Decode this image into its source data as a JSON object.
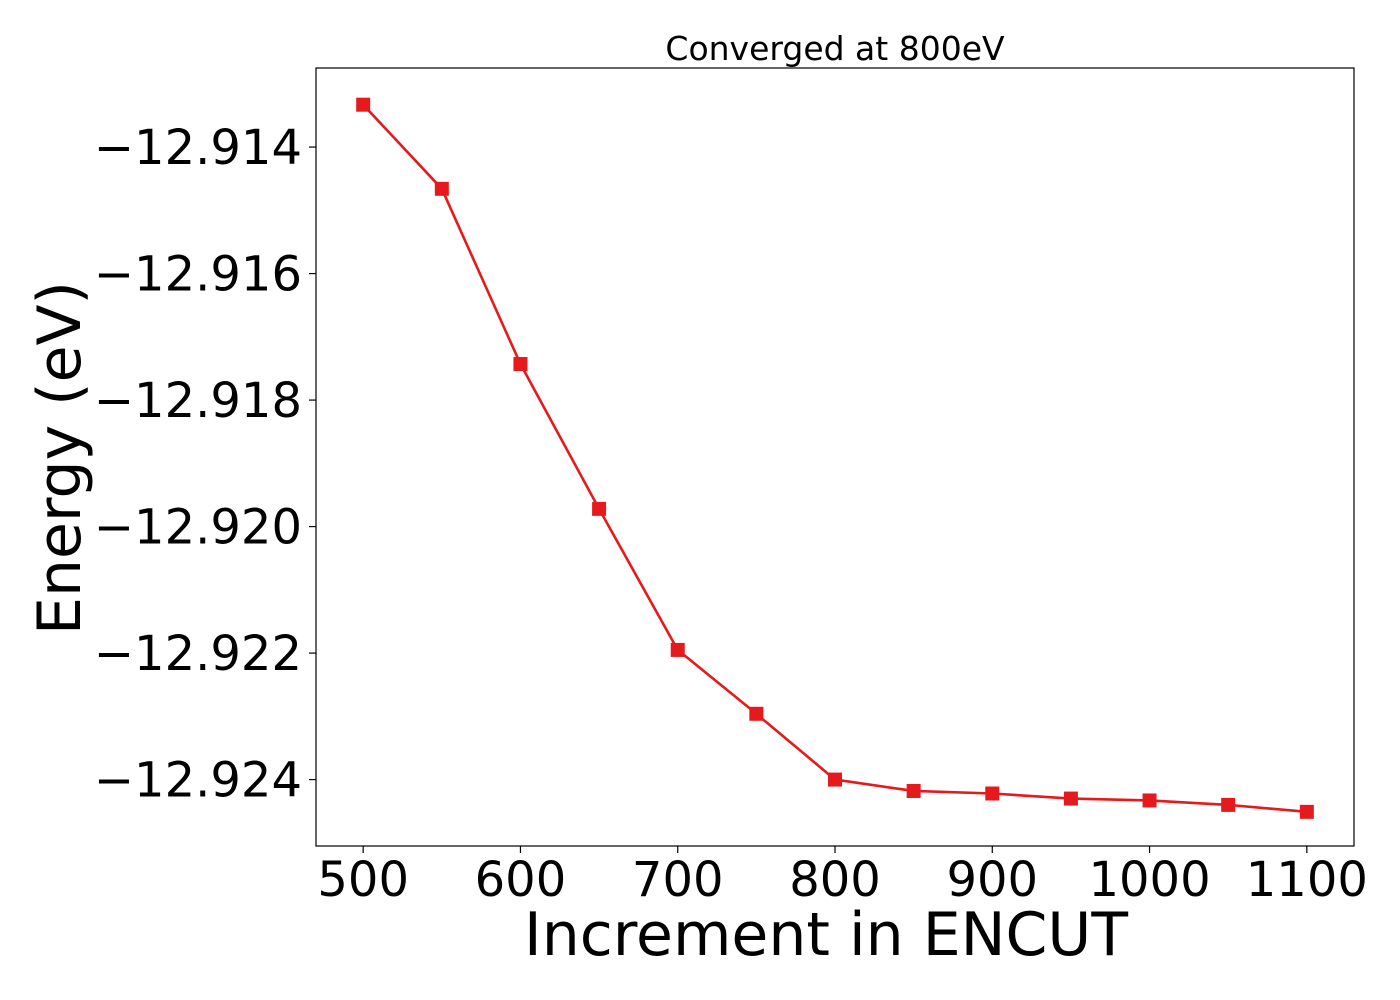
{
  "chart_data": {
    "type": "line",
    "title": "Converged at 800eV",
    "xlabel": "Increment in ENCUT",
    "ylabel": "Energy (eV)",
    "xlim": [
      470,
      1130
    ],
    "ylim": [
      -12.92505,
      -12.91275
    ],
    "xticks": [
      500,
      600,
      700,
      800,
      900,
      1000,
      1100
    ],
    "xtick_labels": [
      "500",
      "600",
      "700",
      "800",
      "900",
      "1000",
      "1100"
    ],
    "yticks": [
      -12.914,
      -12.916,
      -12.918,
      -12.92,
      -12.922,
      -12.924
    ],
    "ytick_labels": [
      "−12.914",
      "−12.916",
      "−12.918",
      "−12.920",
      "−12.922",
      "−12.924"
    ],
    "grid": false,
    "series": [
      {
        "marker": "square",
        "color": "#e41a1c",
        "x": [
          500,
          550,
          600,
          650,
          700,
          750,
          800,
          850,
          900,
          950,
          1000,
          1050,
          1100
        ],
        "y": [
          -12.91333,
          -12.91466,
          -12.91743,
          -12.91972,
          -12.92195,
          -12.92296,
          -12.924,
          -12.92418,
          -12.92422,
          -12.9243,
          -12.92433,
          -12.9244,
          -12.92451
        ]
      }
    ]
  }
}
